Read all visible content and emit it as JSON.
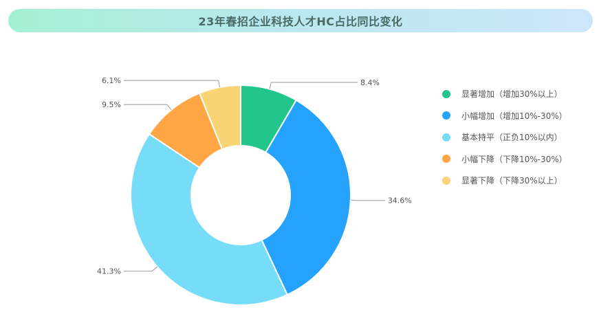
{
  "title": "23年春招企业科技人才HC占比同比变化",
  "chart_data": {
    "type": "pie",
    "donut": true,
    "title": "23年春招企业科技人才HC占比同比变化",
    "legend_position": "right",
    "categories": [
      "显著增加（增加30%以上）",
      "小幅增加（增加10%-30%）",
      "基本持平（正负10%以内）",
      "小幅下降（下降10%-30%）",
      "显著下降（下降30%以上）"
    ],
    "values": [
      8.4,
      34.6,
      41.3,
      9.5,
      6.1
    ],
    "labels": [
      "8.4%",
      "34.6%",
      "41.3%",
      "9.5%",
      "6.1%"
    ],
    "colors": [
      "#22c68c",
      "#25a2fd",
      "#77dcf7",
      "#fea644",
      "#f8d477"
    ]
  }
}
